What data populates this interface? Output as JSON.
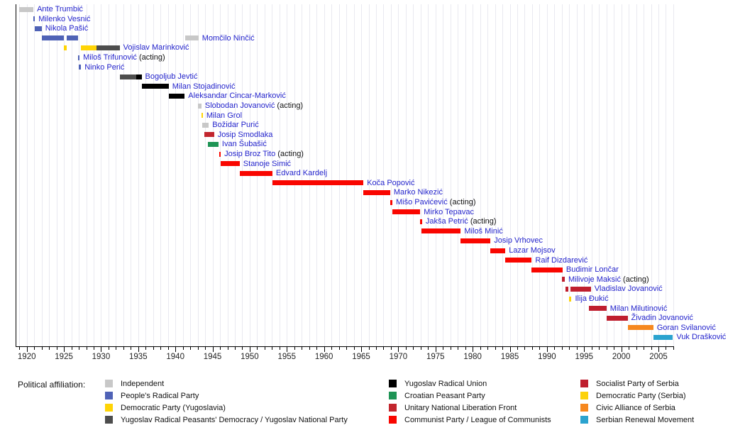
{
  "chart_data": {
    "type": "timeline",
    "x_axis": {
      "min_year": 1918.5,
      "max_year": 2007.1,
      "first_tick_year": 1919,
      "last_tick_year": 2007,
      "minor_tick_step": 1,
      "major_tick_step": 5,
      "major_tick_labels": [
        "1920",
        "1925",
        "1930",
        "1935",
        "1940",
        "1945",
        "1950",
        "1955",
        "1960",
        "1965",
        "1970",
        "1975",
        "1980",
        "1985",
        "1990",
        "1995",
        "2000",
        "2005"
      ]
    },
    "parties": {
      "independent": {
        "label": "Independent",
        "color": "#c8c8c8"
      },
      "peoples_radical": {
        "label": "People's Radical Party",
        "color": "#4f62b6"
      },
      "democratic_yu": {
        "label": "Democratic Party (Yugoslavia)",
        "color": "#ffd405"
      },
      "yrpd_ynp": {
        "label": "Yugoslav Radical Peasants' Democracy / Yugoslav National Party",
        "color": "#4d4d4d"
      },
      "yru": {
        "label": "Yugoslav Radical Union",
        "color": "#000000"
      },
      "cpp": {
        "label": "Croatian Peasant Party",
        "color": "#1e9455"
      },
      "unlf": {
        "label": "Unitary National Liberation Front",
        "color": "#c2262e"
      },
      "communist": {
        "label": "Communist Party / League of Communists",
        "color": "#f90600"
      },
      "sps": {
        "label": "Socialist Party of Serbia",
        "color": "#bf1e2e"
      },
      "democratic_srb": {
        "label": "Democratic Party (Serbia)",
        "color": "#fcd20a"
      },
      "cas": {
        "label": "Civic Alliance of Serbia",
        "color": "#f6881f"
      },
      "srm": {
        "label": "Serbian Renewal Movement",
        "color": "#2ba3cf"
      }
    },
    "ministers": [
      {
        "name": "Ante Trumbić",
        "acting": false,
        "segments": [
          [
            "independent",
            1918.95,
            1920.9
          ]
        ]
      },
      {
        "name": "Milenko Vesnić",
        "acting": false,
        "segments": [
          [
            "peoples_radical",
            1920.9,
            1921.1
          ]
        ]
      },
      {
        "name": "Nikola Pašić",
        "acting": false,
        "segments": [
          [
            "peoples_radical",
            1921.1,
            1922.0
          ]
        ]
      },
      {
        "name": "Momčilo Ninčić",
        "acting": false,
        "segments": [
          [
            "peoples_radical",
            1922.0,
            1924.95
          ],
          [
            "peoples_radical",
            1925.35,
            1926.95
          ],
          [
            "independent",
            1941.3,
            1943.1
          ]
        ]
      },
      {
        "name": "Vojislav Marinković",
        "acting": false,
        "segments": [
          [
            "democratic_yu",
            1924.95,
            1925.35
          ],
          [
            "democratic_yu",
            1927.3,
            1929.4
          ],
          [
            "yrpd_ynp",
            1929.4,
            1932.5
          ]
        ]
      },
      {
        "name": "Miloš Trifunović",
        "acting": true,
        "segments": [
          [
            "peoples_radical",
            1926.9,
            1927.1
          ]
        ]
      },
      {
        "name": "Ninko Perić",
        "acting": false,
        "segments": [
          [
            "peoples_radical",
            1926.95,
            1927.3
          ]
        ]
      },
      {
        "name": "Bogoljub Jevtić",
        "acting": false,
        "segments": [
          [
            "yrpd_ynp",
            1932.5,
            1934.7
          ],
          [
            "yru",
            1934.7,
            1935.45
          ]
        ]
      },
      {
        "name": "Milan Stojadinović",
        "acting": false,
        "segments": [
          [
            "yru",
            1935.45,
            1939.1
          ]
        ]
      },
      {
        "name": "Aleksandar Cincar-Marković",
        "acting": false,
        "segments": [
          [
            "yru",
            1939.1,
            1941.25
          ]
        ]
      },
      {
        "name": "Slobodan Jovanović",
        "acting": true,
        "segments": [
          [
            "independent",
            1943.0,
            1943.5
          ]
        ]
      },
      {
        "name": "Milan Grol",
        "acting": false,
        "segments": [
          [
            "democratic_yu",
            1943.5,
            1943.7
          ]
        ]
      },
      {
        "name": "Božidar Purić",
        "acting": false,
        "segments": [
          [
            "independent",
            1943.65,
            1944.5
          ]
        ]
      },
      {
        "name": "Josip Smodlaka",
        "acting": false,
        "segments": [
          [
            "unlf",
            1943.9,
            1945.2
          ]
        ]
      },
      {
        "name": "Ivan Šubašić",
        "acting": false,
        "segments": [
          [
            "cpp",
            1944.4,
            1945.8
          ]
        ]
      },
      {
        "name": "Josip Broz Tito",
        "acting": true,
        "segments": [
          [
            "communist",
            1945.85,
            1946.1
          ]
        ]
      },
      {
        "name": "Stanoje Simić",
        "acting": false,
        "segments": [
          [
            "communist",
            1946.1,
            1948.65
          ]
        ]
      },
      {
        "name": "Edvard Kardelj",
        "acting": false,
        "segments": [
          [
            "communist",
            1948.65,
            1953.05
          ]
        ]
      },
      {
        "name": "Koča Popović",
        "acting": false,
        "segments": [
          [
            "communist",
            1953.05,
            1965.3
          ]
        ]
      },
      {
        "name": "Marko Nikezić",
        "acting": false,
        "segments": [
          [
            "communist",
            1965.3,
            1968.9
          ]
        ]
      },
      {
        "name": "Mišo Pavićević",
        "acting": true,
        "segments": [
          [
            "communist",
            1968.9,
            1969.2
          ]
        ]
      },
      {
        "name": "Mirko Tepavac",
        "acting": false,
        "segments": [
          [
            "communist",
            1969.2,
            1972.95
          ]
        ]
      },
      {
        "name": "Jakša Petrić",
        "acting": true,
        "segments": [
          [
            "communist",
            1972.95,
            1973.2
          ]
        ]
      },
      {
        "name": "Miloš Minić",
        "acting": false,
        "segments": [
          [
            "communist",
            1973.1,
            1978.4
          ]
        ]
      },
      {
        "name": "Josip Vrhovec",
        "acting": false,
        "segments": [
          [
            "communist",
            1978.4,
            1982.4
          ]
        ]
      },
      {
        "name": "Lazar Mojsov",
        "acting": false,
        "segments": [
          [
            "communist",
            1982.4,
            1984.4
          ]
        ]
      },
      {
        "name": "Raif Dizdarević",
        "acting": false,
        "segments": [
          [
            "communist",
            1984.4,
            1987.95
          ]
        ]
      },
      {
        "name": "Budimir Lončar",
        "acting": false,
        "segments": [
          [
            "communist",
            1987.95,
            1992.1
          ]
        ]
      },
      {
        "name": "Milivoje Maksić",
        "acting": true,
        "segments": [
          [
            "sps",
            1992.0,
            1992.4
          ]
        ]
      },
      {
        "name": "Vladislav Jovanović",
        "acting": false,
        "segments": [
          [
            "sps",
            1992.5,
            1992.9
          ],
          [
            "sps",
            1993.2,
            1995.9
          ]
        ]
      },
      {
        "name": "Ilija Đukić",
        "acting": false,
        "segments": [
          [
            "democratic_srb",
            1993.0,
            1993.3
          ]
        ]
      },
      {
        "name": "Milan Milutinović",
        "acting": false,
        "segments": [
          [
            "sps",
            1995.6,
            1998.0
          ]
        ]
      },
      {
        "name": "Živadin Jovanović",
        "acting": false,
        "segments": [
          [
            "sps",
            1998.0,
            2000.85
          ]
        ]
      },
      {
        "name": "Goran Svilanović",
        "acting": false,
        "segments": [
          [
            "cas",
            2000.85,
            2004.3
          ]
        ]
      },
      {
        "name": "Vuk Drašković",
        "acting": false,
        "segments": [
          [
            "srm",
            2004.3,
            2006.95
          ]
        ]
      }
    ]
  },
  "legend": {
    "heading": "Political affiliation:",
    "columns": [
      [
        "independent",
        "peoples_radical",
        "democratic_yu",
        "yrpd_ynp"
      ],
      [
        "yru",
        "cpp",
        "unlf",
        "communist"
      ],
      [
        "sps",
        "democratic_srb",
        "cas",
        "srm"
      ]
    ]
  },
  "misc": {
    "acting_suffix": " (acting)"
  }
}
